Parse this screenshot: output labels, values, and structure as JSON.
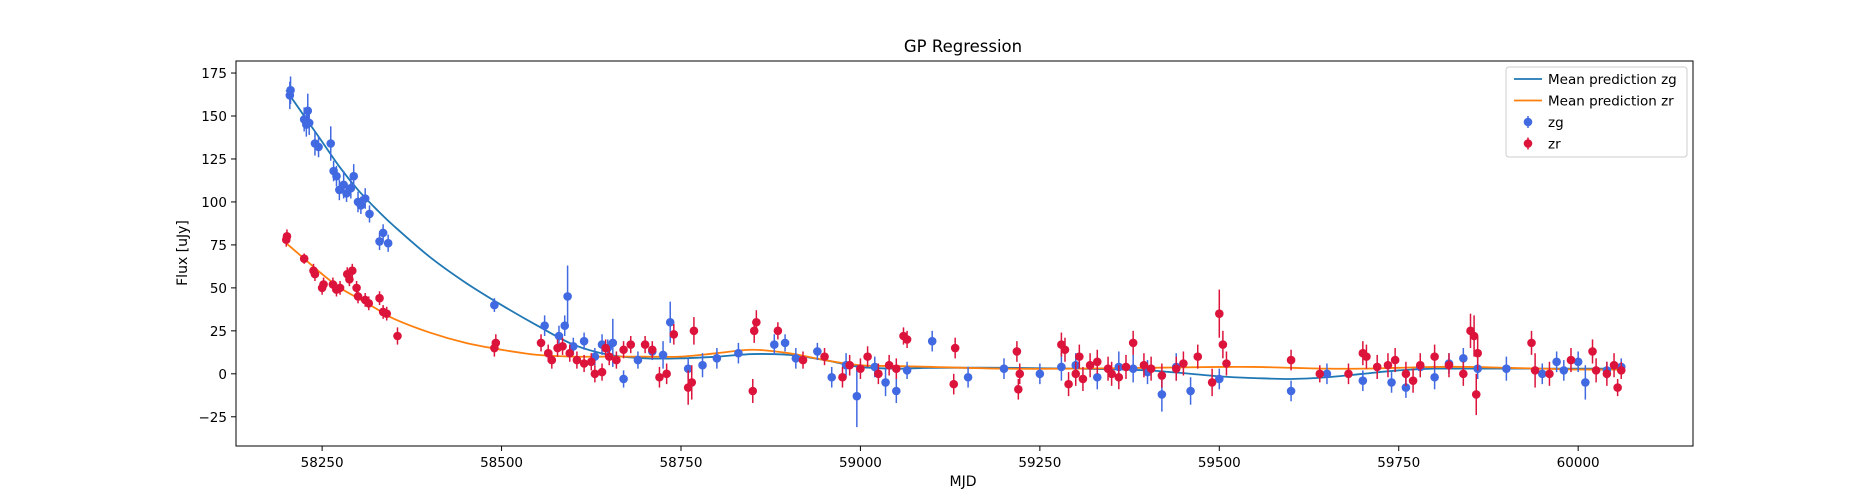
{
  "chart_data": {
    "type": "scatter",
    "title": "GP Regression",
    "xlabel": "MJD",
    "ylabel": "Flux [uJy]",
    "xlim": [
      58130,
      60160
    ],
    "ylim": [
      -42,
      182
    ],
    "xticks": [
      58250,
      58500,
      58750,
      59000,
      59250,
      59500,
      59750,
      60000
    ],
    "yticks": [
      -25,
      0,
      25,
      50,
      75,
      100,
      125,
      150,
      175
    ],
    "grid": false,
    "legend_position": "top-right",
    "colors": {
      "mean_zg": "#1f77b4",
      "mean_zr": "#ff7f0e",
      "points_zg": "#4169e1",
      "points_zr": "#dc143c"
    },
    "lines": [
      {
        "name": "Mean prediction zg",
        "x": [
          58200,
          58225,
          58250,
          58275,
          58300,
          58325,
          58350,
          58400,
          58450,
          58500,
          58550,
          58600,
          58650,
          58700,
          58750,
          58800,
          58850,
          58900,
          58950,
          59000,
          59050,
          59100,
          59200,
          59300,
          59400,
          59500,
          59550,
          59600,
          59650,
          59700,
          59750,
          59800,
          59850,
          59900,
          59950,
          60000,
          60060
        ],
        "y": [
          165,
          150,
          135,
          120,
          107,
          96,
          86,
          68,
          53,
          40,
          28,
          17,
          11,
          9,
          9,
          10,
          11.5,
          11,
          8,
          4,
          3,
          3.5,
          3.5,
          3,
          2,
          -1.5,
          -2.5,
          -3,
          -2,
          0,
          2,
          3,
          3,
          3,
          3,
          3,
          3
        ]
      },
      {
        "name": "Mean prediction zr",
        "x": [
          58200,
          58225,
          58250,
          58275,
          58300,
          58325,
          58350,
          58400,
          58450,
          58500,
          58550,
          58600,
          58650,
          58700,
          58750,
          58800,
          58850,
          58900,
          58950,
          59000,
          59050,
          59100,
          59200,
          59300,
          59400,
          59500,
          59550,
          59600,
          59650,
          59700,
          59750,
          59800,
          59850,
          59900,
          59950,
          60000,
          60060
        ],
        "y": [
          76,
          67,
          58,
          50,
          44,
          38,
          32,
          24,
          18,
          14,
          11,
          10,
          10,
          10,
          10,
          12,
          14,
          12,
          8,
          5,
          4.5,
          4,
          3,
          3,
          3.5,
          4,
          4,
          3.5,
          3,
          3,
          3.5,
          4,
          4,
          3.5,
          3,
          2.5,
          2.5
        ]
      }
    ],
    "series": [
      {
        "name": "zg",
        "x": [
          58205,
          58206,
          58225,
          58228,
          58230,
          58232,
          58240,
          58245,
          58262,
          58266,
          58270,
          58274,
          58280,
          58284,
          58290,
          58294,
          58300,
          58304,
          58310,
          58316,
          58330,
          58335,
          58342,
          58490,
          58560,
          58580,
          58588,
          58592,
          58600,
          58615,
          58630,
          58640,
          58648,
          58655,
          58670,
          58690,
          58710,
          58725,
          58735,
          58760,
          58780,
          58800,
          58830,
          58880,
          58895,
          58910,
          58940,
          58960,
          58980,
          58995,
          59020,
          59035,
          59050,
          59065,
          59100,
          59150,
          59200,
          59250,
          59280,
          59300,
          59330,
          59360,
          59380,
          59400,
          59420,
          59440,
          59460,
          59500,
          59600,
          59650,
          59700,
          59740,
          59760,
          59780,
          59800,
          59820,
          59840,
          59860,
          59900,
          59950,
          59970,
          59980,
          60000,
          60010,
          60040,
          60060
        ],
        "y": [
          162,
          165,
          148,
          145,
          153,
          146,
          134,
          132,
          134,
          118,
          115,
          107,
          110,
          105,
          108,
          115,
          100,
          98,
          102,
          93,
          77,
          82,
          76,
          40,
          28,
          22,
          28,
          45,
          16,
          19,
          10,
          17,
          15,
          18,
          -3,
          8,
          13,
          11,
          30,
          3,
          5,
          9,
          12,
          17,
          18,
          9,
          13,
          -2,
          5,
          -13,
          4,
          -5,
          -10,
          2,
          19,
          -2,
          3,
          0,
          4,
          5,
          -2,
          4,
          3,
          1,
          -12,
          4,
          -10,
          -3,
          -10,
          0,
          -4,
          -5,
          -8,
          4,
          -2,
          6,
          9,
          3,
          3,
          0,
          7,
          2,
          7,
          -5,
          2,
          4
        ],
        "yerr": [
          8,
          8,
          7,
          7,
          10,
          7,
          7,
          6,
          10,
          6,
          6,
          6,
          8,
          5,
          6,
          7,
          6,
          5,
          6,
          5,
          5,
          5,
          5,
          4,
          6,
          6,
          6,
          18,
          5,
          5,
          5,
          6,
          5,
          14,
          5,
          5,
          5,
          8,
          12,
          6,
          7,
          6,
          6,
          6,
          5,
          6,
          5,
          6,
          7,
          18,
          6,
          8,
          7,
          5,
          6,
          6,
          6,
          6,
          8,
          7,
          7,
          9,
          8,
          7,
          10,
          8,
          8,
          6,
          6,
          6,
          6,
          6,
          6,
          6,
          7,
          6,
          6,
          6,
          7,
          6,
          6,
          6,
          6,
          10,
          5,
          5
        ]
      },
      {
        "name": "zr",
        "x": [
          58200,
          58201,
          58225,
          58238,
          58240,
          58250,
          58252,
          58265,
          58270,
          58275,
          58285,
          58288,
          58292,
          58298,
          58300,
          58310,
          58315,
          58330,
          58335,
          58340,
          58355,
          58490,
          58492,
          58555,
          58565,
          58570,
          58578,
          58585,
          58595,
          58605,
          58615,
          58625,
          58630,
          58640,
          58645,
          58650,
          58660,
          58670,
          58680,
          58700,
          58710,
          58720,
          58730,
          58740,
          58760,
          58765,
          58768,
          58850,
          58852,
          58855,
          58885,
          58920,
          58950,
          58975,
          58985,
          59000,
          59010,
          59025,
          59040,
          59050,
          59060,
          59065,
          59130,
          59132,
          59218,
          59220,
          59222,
          59280,
          59285,
          59290,
          59300,
          59305,
          59310,
          59320,
          59330,
          59345,
          59350,
          59360,
          59370,
          59380,
          59395,
          59405,
          59420,
          59440,
          59450,
          59470,
          59490,
          59500,
          59505,
          59510,
          59600,
          59640,
          59680,
          59700,
          59705,
          59720,
          59735,
          59745,
          59760,
          59770,
          59780,
          59800,
          59820,
          59840,
          59850,
          59855,
          59858,
          59860,
          59935,
          59940,
          59960,
          59990,
          60020,
          60025,
          60040,
          60050,
          60055,
          60060
        ],
        "y": [
          78,
          80,
          67,
          60,
          58,
          50,
          52,
          52,
          49,
          50,
          58,
          55,
          60,
          50,
          45,
          43,
          41,
          44,
          36,
          35,
          22,
          15,
          18,
          18,
          12,
          8,
          15,
          16,
          12,
          8,
          6,
          7,
          0,
          1,
          15,
          10,
          8,
          14,
          17,
          17,
          14,
          -2,
          0,
          23,
          -8,
          -5,
          25,
          -10,
          25,
          30,
          25,
          8,
          10,
          -2,
          5,
          3,
          10,
          0,
          5,
          3,
          22,
          20,
          -6,
          15,
          13,
          -9,
          0,
          17,
          14,
          -6,
          0,
          10,
          -3,
          5,
          7,
          3,
          0,
          -2,
          4,
          18,
          5,
          3,
          -1,
          3,
          6,
          10,
          -5,
          35,
          17,
          6,
          8,
          0,
          0,
          12,
          10,
          4,
          5,
          8,
          0,
          -4,
          5,
          10,
          5,
          0,
          25,
          22,
          -12,
          12,
          18,
          2,
          0,
          8,
          13,
          2,
          0,
          5,
          -8,
          2
        ],
        "yerr": [
          4,
          4,
          3,
          4,
          4,
          4,
          4,
          4,
          4,
          4,
          4,
          4,
          4,
          4,
          4,
          4,
          4,
          4,
          4,
          4,
          5,
          5,
          5,
          5,
          5,
          5,
          5,
          5,
          5,
          5,
          5,
          5,
          5,
          5,
          5,
          5,
          5,
          5,
          5,
          5,
          5,
          6,
          6,
          6,
          10,
          10,
          8,
          7,
          7,
          7,
          5,
          5,
          5,
          6,
          6,
          6,
          6,
          6,
          6,
          6,
          5,
          5,
          6,
          6,
          6,
          6,
          6,
          7,
          7,
          7,
          7,
          7,
          7,
          7,
          7,
          7,
          7,
          7,
          7,
          7,
          7,
          7,
          7,
          7,
          7,
          7,
          8,
          14,
          8,
          7,
          6,
          5,
          6,
          7,
          7,
          7,
          7,
          7,
          7,
          7,
          7,
          7,
          7,
          7,
          10,
          12,
          12,
          10,
          7,
          10,
          7,
          7,
          7,
          7,
          7,
          7,
          5,
          5
        ]
      }
    ]
  }
}
